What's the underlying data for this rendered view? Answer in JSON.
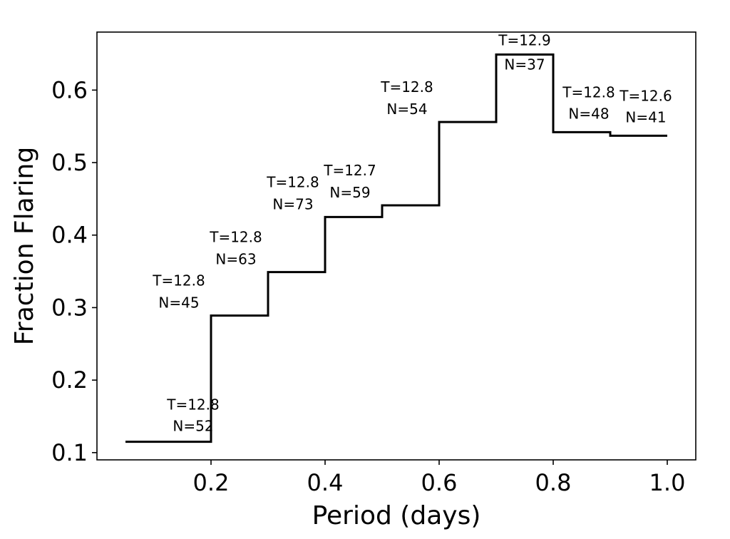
{
  "chart_data": {
    "type": "line",
    "style": "step",
    "xlabel": "Period (days)",
    "ylabel": "Fraction Flaring",
    "xlim": [
      0.0,
      1.05
    ],
    "ylim": [
      0.09,
      0.68
    ],
    "xticks": [
      0.2,
      0.4,
      0.6,
      0.8,
      1.0
    ],
    "xtick_labels": [
      "0.2",
      "0.4",
      "0.6",
      "0.8",
      "1.0"
    ],
    "yticks": [
      0.1,
      0.2,
      0.3,
      0.4,
      0.5,
      0.6
    ],
    "ytick_labels": [
      "0.1",
      "0.2",
      "0.3",
      "0.4",
      "0.5",
      "0.6"
    ],
    "grid": false,
    "bins": [
      {
        "x0": 0.05,
        "x1": 0.2,
        "value": 0.115,
        "T": "T=12.8",
        "N": "N=52"
      },
      {
        "x0": 0.2,
        "x1": 0.3,
        "value": 0.289,
        "T": "T=12.8",
        "N": "N=45"
      },
      {
        "x0": 0.3,
        "x1": 0.4,
        "value": 0.349,
        "T": "T=12.8",
        "N": "N=63"
      },
      {
        "x0": 0.4,
        "x1": 0.5,
        "value": 0.425,
        "T": "T=12.8",
        "N": "N=73"
      },
      {
        "x0": 0.5,
        "x1": 0.6,
        "value": 0.441,
        "T": "T=12.7",
        "N": "N=59"
      },
      {
        "x0": 0.6,
        "x1": 0.7,
        "value": 0.556,
        "T": "T=12.8",
        "N": "N=54"
      },
      {
        "x0": 0.7,
        "x1": 0.8,
        "value": 0.649,
        "T": "T=12.9",
        "N": "N=37"
      },
      {
        "x0": 0.8,
        "x1": 0.9,
        "value": 0.542,
        "T": "T=12.8",
        "N": "N=48"
      },
      {
        "x0": 0.9,
        "x1": 1.0,
        "value": 0.537,
        "T": "T=12.6",
        "N": "N=41"
      }
    ]
  }
}
